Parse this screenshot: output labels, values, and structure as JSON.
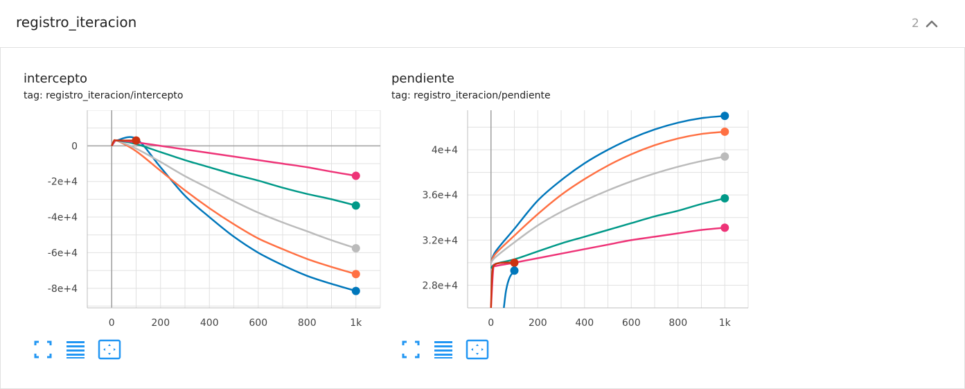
{
  "panel": {
    "title": "registro_iteracion",
    "count": "2",
    "collapse_icon": "chevron-up-icon"
  },
  "colors": {
    "blue": "#0077bb",
    "orange": "#ff7043",
    "gray": "#bbbbbb",
    "teal": "#009988",
    "pink": "#ee3377",
    "red": "#cc3311",
    "tool_accent": "#2196f3"
  },
  "cards": [
    {
      "title": "intercepto",
      "tag": "tag: registro_iteracion/intercepto",
      "tools": [
        "fullscreen-icon",
        "data-list-icon",
        "fit-domain-icon"
      ]
    },
    {
      "title": "pendiente",
      "tag": "tag: registro_iteracion/pendiente",
      "tools": [
        "fullscreen-icon",
        "data-list-icon",
        "fit-domain-icon"
      ]
    }
  ],
  "chart_data": [
    {
      "type": "line",
      "xlim": [
        -100,
        1100
      ],
      "ylim": [
        -91000,
        20000
      ],
      "xticks": [
        0,
        200,
        400,
        600,
        800,
        1000
      ],
      "xtick_labels": [
        "0",
        "200",
        "400",
        "600",
        "800",
        "1k"
      ],
      "yticks": [
        0,
        -20000,
        -40000,
        -60000,
        -80000
      ],
      "ytick_labels": [
        "0",
        "-2e+4",
        "-4e+4",
        "-6e+4",
        "-8e+4"
      ],
      "grid": true,
      "series": [
        {
          "color": "#0077bb",
          "x": [
            0,
            10,
            20,
            100,
            200,
            300,
            400,
            500,
            600,
            700,
            800,
            900,
            1000
          ],
          "y": [
            0,
            2000,
            3000,
            4000,
            -12000,
            -28000,
            -40000,
            -51000,
            -60000,
            -67000,
            -73000,
            -77500,
            -81500
          ]
        },
        {
          "color": "#ff7043",
          "x": [
            0,
            10,
            20,
            100,
            200,
            300,
            400,
            500,
            600,
            700,
            800,
            900,
            1000
          ],
          "y": [
            0,
            2000,
            3000,
            -3000,
            -14000,
            -25000,
            -35000,
            -44000,
            -52000,
            -58000,
            -63500,
            -68000,
            -72000
          ]
        },
        {
          "color": "#bbbbbb",
          "x": [
            0,
            10,
            20,
            100,
            200,
            300,
            400,
            500,
            600,
            700,
            800,
            900,
            1000
          ],
          "y": [
            0,
            2000,
            3000,
            -1500,
            -9000,
            -17000,
            -24000,
            -31000,
            -37500,
            -43000,
            -48000,
            -53000,
            -57500
          ]
        },
        {
          "color": "#009988",
          "x": [
            0,
            10,
            20,
            100,
            200,
            300,
            400,
            500,
            600,
            700,
            800,
            900,
            1000
          ],
          "y": [
            0,
            2000,
            3000,
            1000,
            -3500,
            -8000,
            -12000,
            -16000,
            -19500,
            -23500,
            -27000,
            -30000,
            -33500
          ]
        },
        {
          "color": "#ee3377",
          "x": [
            0,
            10,
            20,
            100,
            200,
            300,
            400,
            500,
            600,
            700,
            800,
            900,
            1000
          ],
          "y": [
            0,
            2000,
            3000,
            2000,
            0,
            -2000,
            -4000,
            -6000,
            -8000,
            -10000,
            -12000,
            -14500,
            -16800
          ]
        },
        {
          "color": "#cc3311",
          "x": [
            0,
            10,
            20,
            100
          ],
          "y": [
            0,
            3000,
            3000,
            3000
          ]
        }
      ]
    },
    {
      "type": "line",
      "xlim": [
        -100,
        1100
      ],
      "ylim": [
        26000,
        43500
      ],
      "xticks": [
        0,
        200,
        400,
        600,
        800,
        1000
      ],
      "xtick_labels": [
        "0",
        "200",
        "400",
        "600",
        "800",
        "1k"
      ],
      "yticks": [
        28000,
        32000,
        36000,
        40000
      ],
      "ytick_labels": [
        "2.8e+4",
        "3.2e+4",
        "3.6e+4",
        "4e+4"
      ],
      "grid": true,
      "series": [
        {
          "color": "#0077bb",
          "x": [
            0,
            20,
            100,
            200,
            300,
            400,
            500,
            600,
            700,
            800,
            900,
            1000
          ],
          "y": [
            30000,
            31000,
            33000,
            35500,
            37300,
            38800,
            40000,
            41000,
            41800,
            42400,
            42800,
            43000
          ]
        },
        {
          "color": "#ff7043",
          "x": [
            0,
            20,
            100,
            200,
            300,
            400,
            500,
            600,
            700,
            800,
            900,
            1000
          ],
          "y": [
            30000,
            30800,
            32400,
            34300,
            36000,
            37400,
            38600,
            39600,
            40400,
            41000,
            41400,
            41600
          ]
        },
        {
          "color": "#bbbbbb",
          "x": [
            0,
            20,
            100,
            200,
            300,
            400,
            500,
            600,
            700,
            800,
            900,
            1000
          ],
          "y": [
            30000,
            30500,
            31800,
            33300,
            34500,
            35500,
            36400,
            37200,
            37900,
            38500,
            39000,
            39400
          ]
        },
        {
          "color": "#009988",
          "x": [
            0,
            20,
            100,
            200,
            300,
            400,
            500,
            600,
            700,
            800,
            900,
            1000
          ],
          "y": [
            29500,
            29900,
            30300,
            31000,
            31700,
            32300,
            32900,
            33500,
            34100,
            34600,
            35200,
            35700
          ]
        },
        {
          "color": "#ee3377",
          "x": [
            0,
            10,
            20,
            100,
            200,
            300,
            400,
            500,
            600,
            700,
            800,
            900,
            1000
          ],
          "y": [
            26000,
            29500,
            29700,
            30000,
            30400,
            30800,
            31200,
            31600,
            32000,
            32300,
            32600,
            32900,
            33100
          ]
        },
        {
          "color": "#cc3311",
          "x": [
            0,
            5,
            15,
            50,
            100
          ],
          "y": [
            26000,
            29000,
            29800,
            30000,
            30000
          ]
        },
        {
          "color": "#0077bb",
          "x": [
            55,
            65,
            80,
            100
          ],
          "y": [
            26000,
            27600,
            28700,
            29300
          ]
        }
      ]
    }
  ]
}
